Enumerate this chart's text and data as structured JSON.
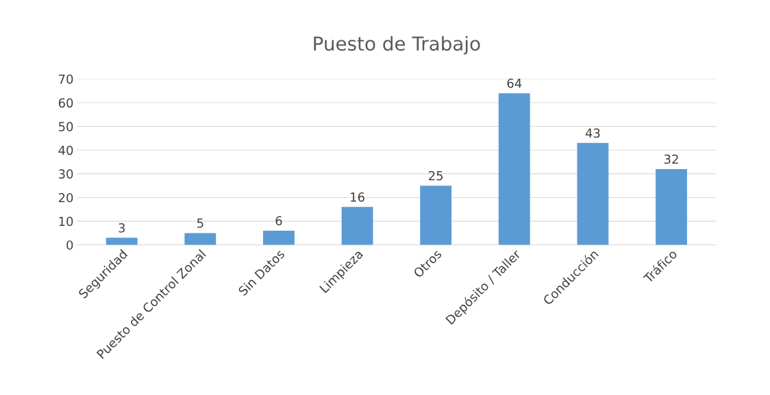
{
  "chart_data": {
    "type": "bar",
    "title": "Puesto de Trabajo",
    "categories": [
      "Seguridad",
      "Puesto de Control Zonal",
      "Sin Datos",
      "Limpieza",
      "Otros",
      "Depósito / Taller",
      "Conducción",
      "Tráfico"
    ],
    "values": [
      3,
      5,
      6,
      16,
      25,
      64,
      43,
      32
    ],
    "color": "#5b9bd5",
    "ylim": [
      0,
      70
    ],
    "yticks": [
      0,
      10,
      20,
      30,
      40,
      50,
      60,
      70
    ],
    "grid": "y",
    "data_labels": true,
    "legend": false
  }
}
